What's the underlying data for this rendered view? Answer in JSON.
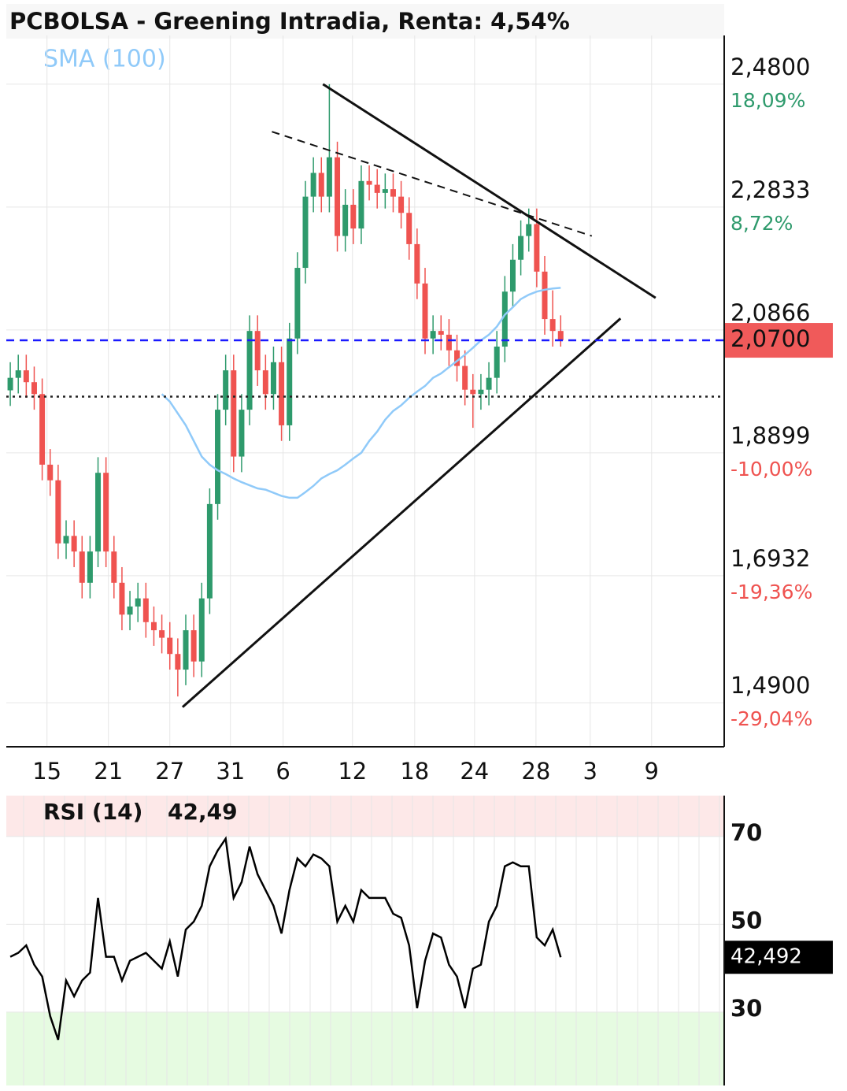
{
  "chart_data": [
    {
      "type": "candlestick",
      "title": "PCBOLSA - Greening Intradia, Renta: 4,54%",
      "xlim": [
        0,
        90
      ],
      "ylim": [
        1.4195,
        2.558
      ],
      "xticks": [
        {
          "value": 5.1,
          "label": "15"
        },
        {
          "value": 12.8,
          "label": "21"
        },
        {
          "value": 20.5,
          "label": "27"
        },
        {
          "value": 28.1,
          "label": "31"
        },
        {
          "value": 34.7,
          "label": "6"
        },
        {
          "value": 43.4,
          "label": "12"
        },
        {
          "value": 51.2,
          "label": "18"
        },
        {
          "value": 58.7,
          "label": "24"
        },
        {
          "value": 66.4,
          "label": "28"
        },
        {
          "value": 73.2,
          "label": "3"
        },
        {
          "value": 80.9,
          "label": "9"
        }
      ],
      "yticks": [
        {
          "value": 2.48,
          "label": "2,4800"
        },
        {
          "value": 2.2833,
          "label": "2,2833"
        },
        {
          "value": 2.0866,
          "label": "2,0866"
        },
        {
          "value": 1.8899,
          "label": "1,8899"
        },
        {
          "value": 1.6932,
          "label": "1,6932"
        },
        {
          "value": 1.49,
          "label": "1,4900"
        }
      ],
      "ytick_changes": [
        "18,09%",
        "8,72%",
        null,
        "-10,00%",
        "-19,36%",
        "-29,04%"
      ],
      "up_color": "#2e9a6c",
      "down_color": "#ef5350",
      "open": [
        1.99,
        2.01,
        2.022,
        2.003,
        1.984,
        1.871,
        1.846,
        1.745,
        1.757,
        1.732,
        1.682,
        1.732,
        1.858,
        1.732,
        1.682,
        1.631,
        1.644,
        1.657,
        1.619,
        1.606,
        1.594,
        1.568,
        1.543,
        1.606,
        1.556,
        1.657,
        1.808,
        1.959,
        2.022,
        1.884,
        1.959,
        2.085,
        2.022,
        1.984,
        2.035,
        1.934,
        2.073,
        2.186,
        2.3,
        2.338,
        2.3,
        2.363,
        2.237,
        2.287,
        2.249,
        2.325,
        2.319,
        2.306,
        2.312,
        2.3,
        2.274,
        2.224,
        2.161,
        2.073,
        2.085,
        2.079,
        2.054,
        2.029,
        1.991,
        1.984,
        1.991,
        2.01,
        2.06,
        2.148,
        2.199,
        2.237,
        2.256,
        2.18,
        2.104,
        2.085
      ],
      "high": [
        2.035,
        2.047,
        2.047,
        2.028,
        2.009,
        1.896,
        1.871,
        1.782,
        1.782,
        1.757,
        1.757,
        1.883,
        1.883,
        1.757,
        1.707,
        1.669,
        1.682,
        1.682,
        1.644,
        1.631,
        1.619,
        1.593,
        1.631,
        1.631,
        1.682,
        1.833,
        1.984,
        2.047,
        2.047,
        1.984,
        2.11,
        2.11,
        2.047,
        2.06,
        2.06,
        2.098,
        2.211,
        2.325,
        2.363,
        2.363,
        2.48,
        2.388,
        2.312,
        2.312,
        2.35,
        2.35,
        2.344,
        2.337,
        2.337,
        2.325,
        2.299,
        2.249,
        2.186,
        2.11,
        2.11,
        2.104,
        2.079,
        2.054,
        2.016,
        2.016,
        2.035,
        2.085,
        2.173,
        2.224,
        2.262,
        2.281,
        2.281,
        2.205,
        2.15,
        2.11
      ],
      "low": [
        1.965,
        1.985,
        1.978,
        1.959,
        1.846,
        1.821,
        1.72,
        1.72,
        1.707,
        1.657,
        1.657,
        1.707,
        1.707,
        1.657,
        1.606,
        1.606,
        1.619,
        1.594,
        1.581,
        1.569,
        1.543,
        1.5,
        1.518,
        1.531,
        1.531,
        1.632,
        1.783,
        1.934,
        1.859,
        1.859,
        1.934,
        1.997,
        1.959,
        1.959,
        1.909,
        1.909,
        2.048,
        2.161,
        2.275,
        2.275,
        2.275,
        2.212,
        2.212,
        2.224,
        2.224,
        2.294,
        2.281,
        2.281,
        2.275,
        2.249,
        2.199,
        2.136,
        2.048,
        2.048,
        2.054,
        2.029,
        2.004,
        1.966,
        1.93,
        1.959,
        1.966,
        1.985,
        2.035,
        2.123,
        2.174,
        2.212,
        2.155,
        2.079,
        2.06,
        2.06
      ],
      "close": [
        2.01,
        2.022,
        2.003,
        1.984,
        1.871,
        1.846,
        1.745,
        1.757,
        1.732,
        1.682,
        1.732,
        1.858,
        1.732,
        1.682,
        1.631,
        1.644,
        1.657,
        1.619,
        1.606,
        1.594,
        1.568,
        1.543,
        1.606,
        1.556,
        1.657,
        1.808,
        1.959,
        2.022,
        1.884,
        1.959,
        2.085,
        2.022,
        1.984,
        2.035,
        1.934,
        2.073,
        2.186,
        2.3,
        2.338,
        2.3,
        2.363,
        2.237,
        2.287,
        2.249,
        2.325,
        2.319,
        2.306,
        2.312,
        2.3,
        2.274,
        2.224,
        2.161,
        2.073,
        2.085,
        2.079,
        2.054,
        2.029,
        1.991,
        1.984,
        1.991,
        2.01,
        2.06,
        2.148,
        2.199,
        2.237,
        2.256,
        2.18,
        2.104,
        2.085,
        2.07
      ],
      "sma": {
        "name": "SMA (100)",
        "color": "#90caf9",
        "values": [
          null,
          null,
          null,
          null,
          null,
          null,
          null,
          null,
          null,
          null,
          null,
          null,
          null,
          null,
          null,
          null,
          null,
          null,
          null,
          1.984,
          1.972,
          1.953,
          1.934,
          1.909,
          1.884,
          1.871,
          1.862,
          1.856,
          1.849,
          1.843,
          1.838,
          1.833,
          1.831,
          1.826,
          1.821,
          1.818,
          1.818,
          1.827,
          1.837,
          1.849,
          1.856,
          1.862,
          1.871,
          1.881,
          1.89,
          1.909,
          1.924,
          1.943,
          1.957,
          1.966,
          1.978,
          1.988,
          1.997,
          2.01,
          2.017,
          2.027,
          2.037,
          2.047,
          2.058,
          2.07,
          2.079,
          2.092,
          2.111,
          2.123,
          2.136,
          2.143,
          2.148,
          2.151,
          2.153,
          2.154
        ]
      },
      "reference_lines": [
        {
          "value": 2.07,
          "label": "2,0700",
          "color": "#1a1aff",
          "style": "dashed",
          "label_color": "#f05a5a"
        },
        {
          "value": 1.98,
          "color": "#222222",
          "style": "dotted"
        }
      ],
      "trendlines": [
        {
          "x": [
            39.7,
            81.4
          ],
          "y": [
            2.48,
            2.138
          ],
          "style": "solid"
        },
        {
          "x": [
            22.1,
            77.0
          ],
          "y": [
            1.483,
            2.105
          ],
          "style": "solid"
        },
        {
          "x": [
            33.3,
            73.4
          ],
          "y": [
            2.404,
            2.237
          ],
          "style": "dashed"
        }
      ],
      "grid": true
    },
    {
      "type": "line",
      "title": "RSI (14)",
      "value_label": "42,49",
      "last_label": "42,492",
      "color": "#000000",
      "xlim": [
        0,
        90
      ],
      "ylim": [
        13.3,
        79.3
      ],
      "yticks": [
        30,
        50,
        70
      ],
      "ytick_colors": [
        "#008000",
        "#000000",
        "#e00000"
      ],
      "band_colors": [
        "#e6fbe1",
        "#fde8e8"
      ],
      "values": [
        42.6,
        43.5,
        45.2,
        40.8,
        38.1,
        29.1,
        23.7,
        37.2,
        33.6,
        37.2,
        39.0,
        56.0,
        42.6,
        42.6,
        37.2,
        41.7,
        42.6,
        43.5,
        41.7,
        39.9,
        46.1,
        38.1,
        48.8,
        50.6,
        54.2,
        63.2,
        66.8,
        69.5,
        56.0,
        59.6,
        67.7,
        61.4,
        57.8,
        54.2,
        47.9,
        57.8,
        65.0,
        63.2,
        65.9,
        65.0,
        63.2,
        50.6,
        54.2,
        50.6,
        57.8,
        56.0,
        56.0,
        56.0,
        52.4,
        51.5,
        45.2,
        30.9,
        41.7,
        47.9,
        47.0,
        40.8,
        38.1,
        30.9,
        39.9,
        40.8,
        50.6,
        54.2,
        63.2,
        64.1,
        63.2,
        63.2,
        47.0,
        45.2,
        48.8,
        42.49
      ]
    }
  ]
}
